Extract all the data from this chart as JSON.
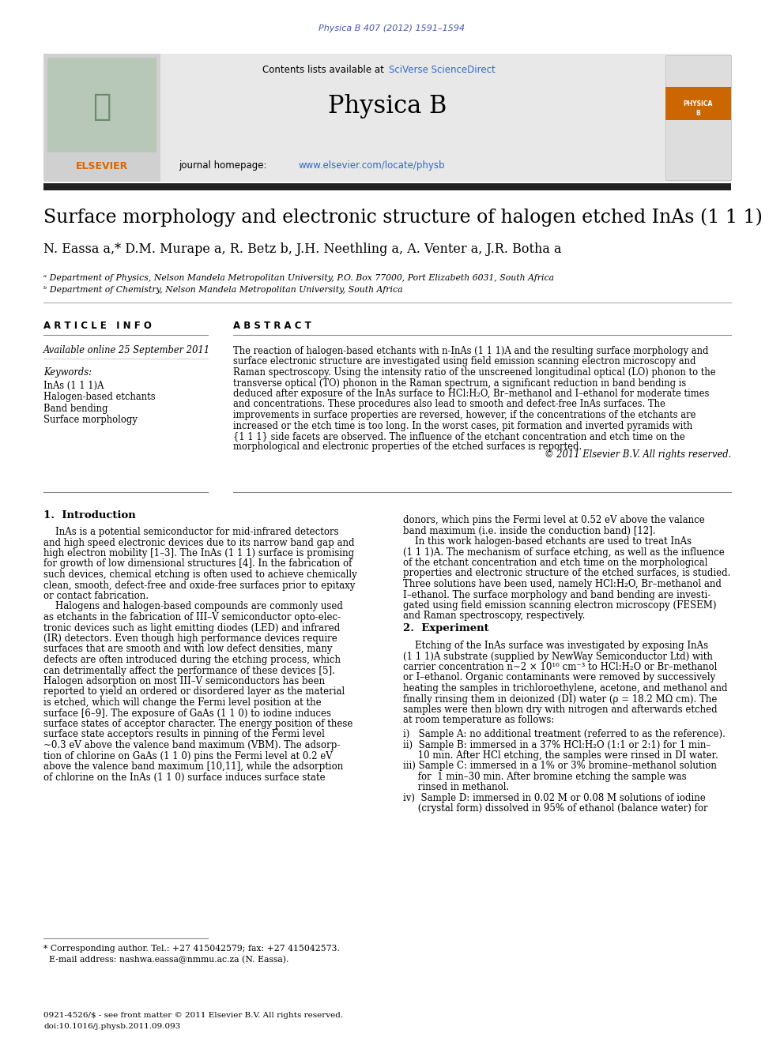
{
  "page_width": 9.92,
  "page_height": 13.23,
  "bg_color": "#ffffff",
  "journal_ref": "Physica B 407 (2012) 1591–1594",
  "journal_ref_color": "#4455aa",
  "header_bg": "#e8e8e8",
  "link_blue": "#3366cc",
  "journal_title": "Physica B",
  "paper_title": "Surface morphology and electronic structure of halogen etched InAs (1 1 1)",
  "authors_plain": "N. Eassa a,* D.M. Murape a, R. Betz b, J.H. Neethling a, A. Venter a, J.R. Botha a",
  "affil_a": "ᵃ Department of Physics, Nelson Mandela Metropolitan University, P.O. Box 77000, Port Elizabeth 6031, South Africa",
  "affil_b": "ᵇ Department of Chemistry, Nelson Mandela Metropolitan University, South Africa",
  "article_info_title": "A R T I C L E   I N F O",
  "available_online": "Available online 25 September 2011",
  "keywords_title": "Keywords:",
  "keywords": [
    "InAs (1 1 1)A",
    "Halogen-based etchants",
    "Band bending",
    "Surface morphology"
  ],
  "abstract_title": "A B S T R A C T",
  "abstract_text": "The reaction of halogen-based etchants with n-InAs (1 1 1)A and the resulting surface morphology and surface electronic structure are investigated using field emission scanning electron microscopy and Raman spectroscopy. Using the intensity ratio of the unscreened longitudinal optical (LO) phonon to the transverse optical (TO) phonon in the Raman spectrum, a significant reduction in band bending is deduced after exposure of the InAs surface to HCl:H₂O, Br–methanol and I–ethanol for moderate times and concentrations. These procedures also lead to smooth and defect-free InAs surfaces. The improvements in surface properties are reversed, however, if the concentrations of the etchants are increased or the etch time is too long. In the worst cases, pit formation and inverted pyramids with {1 1 1} side facets are observed. The influence of the etchant concentration and etch time on the morphological and electronic properties of the etched surfaces is reported.",
  "copyright": "© 2011 Elsevier B.V. All rights reserved.",
  "intro_title": "1.  Introduction",
  "intro_left_lines": [
    "    InAs is a potential semiconductor for mid-infrared detectors",
    "and high speed electronic devices due to its narrow band gap and",
    "high electron mobility [1–3]. The InAs (1 1 1) surface is promising",
    "for growth of low dimensional structures [4]. In the fabrication of",
    "such devices, chemical etching is often used to achieve chemically",
    "clean, smooth, defect-free and oxide-free surfaces prior to epitaxy",
    "or contact fabrication.",
    "    Halogens and halogen-based compounds are commonly used",
    "as etchants in the fabrication of III–V semiconductor opto-elec-",
    "tronic devices such as light emitting diodes (LED) and infrared",
    "(IR) detectors. Even though high performance devices require",
    "surfaces that are smooth and with low defect densities, many",
    "defects are often introduced during the etching process, which",
    "can detrimentally affect the performance of these devices [5].",
    "Halogen adsorption on most III–V semiconductors has been",
    "reported to yield an ordered or disordered layer as the material",
    "is etched, which will change the Fermi level position at the",
    "surface [6–9]. The exposure of GaAs (1 1 0) to iodine induces",
    "surface states of acceptor character. The energy position of these",
    "surface state acceptors results in pinning of the Fermi level",
    "~0.3 eV above the valence band maximum (VBM). The adsorp-",
    "tion of chlorine on GaAs (1 1 0) pins the Fermi level at 0.2 eV",
    "above the valence band maximum [10,11], while the adsorption",
    "of chlorine on the InAs (1 1 0) surface induces surface state"
  ],
  "intro_right_lines": [
    "donors, which pins the Fermi level at 0.52 eV above the valance",
    "band maximum (i.e. inside the conduction band) [12].",
    "    In this work halogen-based etchants are used to treat InAs",
    "(1 1 1)A. The mechanism of surface etching, as well as the influence",
    "of the etchant concentration and etch time on the morphological",
    "properties and electronic structure of the etched surfaces, is studied.",
    "Three solutions have been used, namely HCl:H₂O, Br–methanol and",
    "I–ethanol. The surface morphology and band bending are investi-",
    "gated using field emission scanning electron microscopy (FESEM)",
    "and Raman spectroscopy, respectively."
  ],
  "experiment_title": "2.  Experiment",
  "experiment_lines": [
    "    Etching of the InAs surface was investigated by exposing InAs",
    "(1 1 1)A substrate (supplied by NewWay Semiconductor Ltd) with",
    "carrier concentration n~2 × 10¹⁶ cm⁻³ to HCl:H₂O or Br–methanol",
    "or I–ethanol. Organic contaminants were removed by successively",
    "heating the samples in trichloroethylene, acetone, and methanol and",
    "finally rinsing them in deionized (DI) water (ρ = 18.2 MΩ cm). The",
    "samples were then blown dry with nitrogen and afterwards etched",
    "at room temperature as follows:"
  ],
  "sample_items": [
    "i)   Sample A: no additional treatment (referred to as the reference).",
    "ii)  Sample B: immersed in a 37% HCl:H₂O (1:1 or 2:1) for 1 min–",
    "     10 min. After HCl etching, the samples were rinsed in DI water.",
    "iii) Sample C: immersed in a 1% or 3% bromine–methanol solution",
    "     for  1 min–30 min. After bromine etching the sample was",
    "     rinsed in methanol.",
    "iv)  Sample D: immersed in 0.02 M or 0.08 M solutions of iodine",
    "     (crystal form) dissolved in 95% of ethanol (balance water) for"
  ],
  "footnote_line1": "* Corresponding author. Tel.: +27 415042579; fax: +27 415042573.",
  "footnote_line2": "  E-mail address: nashwa.eassa@nmmu.ac.za (N. Eassa).",
  "footer_text1": "0921-4526/$ - see front matter © 2011 Elsevier B.V. All rights reserved.",
  "footer_text2": "doi:10.1016/j.physb.2011.09.093",
  "text_color": "#000000",
  "orange_color": "#dd6600",
  "gray_header": "#e8e8e8",
  "dark_bar": "#222222"
}
